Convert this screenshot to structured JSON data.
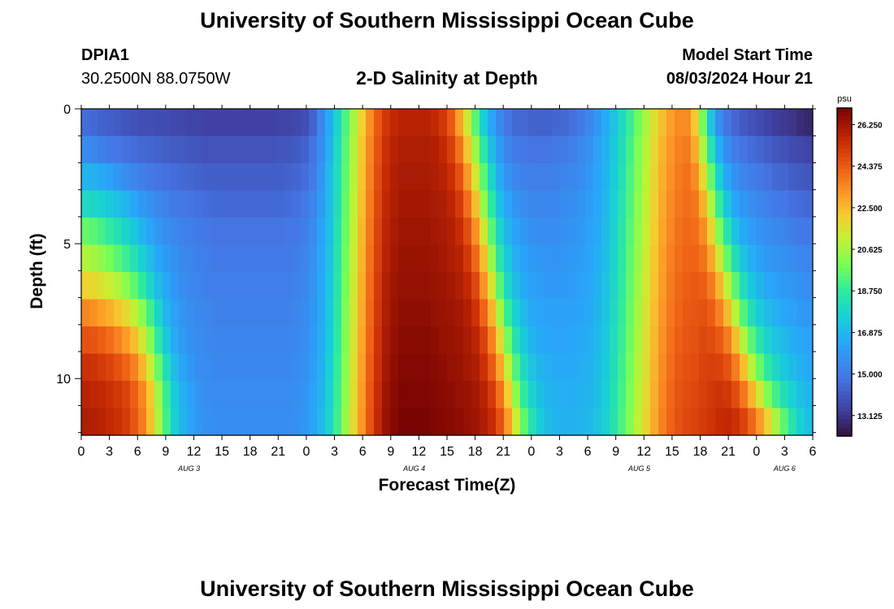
{
  "header": {
    "title": "University of Southern Mississippi Ocean Cube",
    "station_id": "DPIA1",
    "station_coords": "30.2500N  88.0750W",
    "chart_title": "2-D Salinity at Depth",
    "model_start_label": "Model Start Time",
    "model_start_value": "08/03/2024 Hour 21"
  },
  "footer": {
    "title": "University of Southern Mississippi Ocean Cube"
  },
  "chart_data": {
    "type": "heatmap",
    "title": "2-D Salinity at Depth",
    "xlabel": "Forecast Time(Z)",
    "ylabel": "Depth (ft)",
    "x_hours_range": [
      0,
      78
    ],
    "x_tick_labels": [
      "0",
      "3",
      "6",
      "9",
      "12",
      "15",
      "18",
      "21",
      "0",
      "3",
      "6",
      "9",
      "12",
      "15",
      "18",
      "21",
      "0",
      "3",
      "6",
      "9",
      "12",
      "15",
      "18",
      "21",
      "0",
      "3",
      "6"
    ],
    "day_labels": [
      {
        "label": "AUG 3",
        "hour": 11.5
      },
      {
        "label": "AUG 4",
        "hour": 35.5
      },
      {
        "label": "AUG 5",
        "hour": 59.5
      },
      {
        "label": "AUG 6",
        "hour": 75
      }
    ],
    "ylim": [
      0,
      12.1
    ],
    "y_ticks": [
      0,
      5,
      10
    ],
    "depth_levels": 12,
    "colorbar": {
      "unit": "psu",
      "min": 12.2,
      "max": 27.0,
      "tick_labels": [
        "26.250",
        "24.375",
        "22.500",
        "20.625",
        "18.750",
        "16.875",
        "15.000",
        "13.125"
      ],
      "tick_values": [
        26.25,
        24.375,
        22.5,
        20.625,
        18.75,
        16.875,
        15.0,
        13.125
      ]
    },
    "salinity_columns_psu": [
      [
        14.6,
        15.5,
        16.8,
        18.0,
        19.6,
        20.8,
        22.0,
        23.5,
        24.6,
        25.4,
        25.8,
        26.0
      ],
      [
        14.5,
        15.4,
        16.7,
        17.9,
        19.4,
        20.6,
        21.8,
        23.3,
        24.5,
        25.3,
        25.7,
        25.9
      ],
      [
        14.3,
        15.2,
        16.5,
        17.7,
        19.1,
        20.3,
        21.5,
        23.0,
        24.3,
        25.1,
        25.6,
        25.8
      ],
      [
        14.2,
        15.0,
        16.2,
        17.4,
        18.7,
        19.9,
        21.2,
        22.7,
        24.0,
        24.9,
        25.4,
        25.6
      ],
      [
        14.1,
        14.9,
        15.9,
        17.1,
        18.3,
        19.4,
        20.8,
        22.3,
        23.6,
        24.6,
        25.2,
        25.4
      ],
      [
        14.0,
        14.7,
        15.6,
        16.8,
        17.8,
        18.9,
        20.2,
        21.8,
        23.1,
        24.2,
        24.9,
        25.1
      ],
      [
        13.9,
        14.6,
        15.3,
        16.4,
        17.3,
        18.3,
        19.5,
        21.1,
        22.4,
        23.6,
        24.3,
        24.5
      ],
      [
        13.8,
        14.5,
        15.1,
        16.0,
        16.8,
        17.6,
        18.7,
        20.2,
        21.4,
        22.6,
        23.5,
        23.7
      ],
      [
        13.8,
        14.4,
        14.9,
        15.7,
        16.3,
        17.0,
        17.8,
        19.0,
        20.1,
        21.2,
        22.2,
        22.4
      ],
      [
        13.7,
        14.3,
        14.8,
        15.4,
        15.9,
        16.4,
        17.0,
        17.8,
        18.6,
        19.6,
        20.5,
        20.7
      ],
      [
        13.7,
        14.2,
        14.7,
        15.2,
        15.6,
        16.0,
        16.4,
        16.8,
        17.4,
        18.1,
        18.8,
        19.0
      ],
      [
        13.6,
        14.1,
        14.6,
        15.0,
        15.4,
        15.7,
        15.9,
        16.2,
        16.5,
        17.0,
        17.5,
        17.6
      ],
      [
        13.6,
        14.1,
        14.5,
        14.9,
        15.2,
        15.4,
        15.6,
        15.8,
        16.0,
        16.3,
        16.7,
        16.8
      ],
      [
        13.5,
        14.0,
        14.4,
        14.8,
        15.1,
        15.3,
        15.4,
        15.6,
        15.7,
        15.9,
        16.2,
        16.3
      ],
      [
        13.5,
        14.0,
        14.3,
        14.7,
        15.0,
        15.2,
        15.3,
        15.4,
        15.5,
        15.6,
        15.8,
        15.9
      ],
      [
        13.4,
        13.9,
        14.2,
        14.6,
        14.9,
        15.1,
        15.2,
        15.3,
        15.4,
        15.5,
        15.6,
        15.7
      ],
      [
        13.4,
        13.9,
        14.2,
        14.5,
        14.8,
        15.0,
        15.1,
        15.2,
        15.3,
        15.4,
        15.5,
        15.6
      ],
      [
        13.4,
        13.9,
        14.2,
        14.5,
        14.8,
        15.0,
        15.1,
        15.2,
        15.3,
        15.4,
        15.5,
        15.6
      ],
      [
        13.4,
        13.9,
        14.2,
        14.5,
        14.8,
        15.0,
        15.1,
        15.2,
        15.3,
        15.4,
        15.5,
        15.6
      ],
      [
        13.4,
        13.9,
        14.2,
        14.5,
        14.8,
        15.0,
        15.1,
        15.2,
        15.3,
        15.4,
        15.5,
        15.6
      ],
      [
        13.4,
        13.9,
        14.2,
        14.5,
        14.8,
        15.0,
        15.1,
        15.2,
        15.3,
        15.4,
        15.5,
        15.6
      ],
      [
        13.4,
        13.9,
        14.2,
        14.5,
        14.8,
        15.0,
        15.1,
        15.2,
        15.3,
        15.4,
        15.5,
        15.6
      ],
      [
        13.4,
        13.9,
        14.2,
        14.5,
        14.8,
        15.0,
        15.1,
        15.2,
        15.3,
        15.4,
        15.5,
        15.6
      ],
      [
        13.4,
        13.9,
        14.2,
        14.5,
        14.8,
        15.0,
        15.1,
        15.2,
        15.3,
        15.4,
        15.5,
        15.6
      ],
      [
        13.5,
        14.0,
        14.2,
        14.5,
        14.8,
        15.0,
        15.1,
        15.2,
        15.3,
        15.4,
        15.5,
        15.6
      ],
      [
        13.5,
        14.0,
        14.3,
        14.6,
        14.9,
        15.0,
        15.1,
        15.2,
        15.3,
        15.4,
        15.5,
        15.6
      ],
      [
        13.6,
        14.1,
        14.4,
        14.7,
        14.9,
        15.1,
        15.2,
        15.3,
        15.4,
        15.5,
        15.6,
        15.7
      ],
      [
        13.8,
        14.3,
        14.6,
        14.9,
        15.1,
        15.3,
        15.4,
        15.5,
        15.6,
        15.7,
        15.8,
        15.9
      ],
      [
        14.3,
        14.8,
        15.0,
        15.3,
        15.5,
        15.7,
        15.8,
        15.9,
        16.0,
        16.1,
        16.2,
        16.3
      ],
      [
        15.3,
        15.6,
        15.8,
        16.0,
        16.2,
        16.3,
        16.4,
        16.5,
        16.6,
        16.7,
        16.8,
        16.9
      ],
      [
        16.5,
        16.7,
        16.9,
        17.0,
        17.1,
        17.2,
        17.3,
        17.4,
        17.5,
        17.6,
        17.7,
        17.8
      ],
      [
        17.8,
        18.0,
        18.1,
        18.2,
        18.3,
        18.4,
        18.5,
        18.6,
        18.7,
        18.8,
        18.9,
        19.0
      ],
      [
        19.2,
        19.4,
        19.5,
        19.6,
        19.7,
        19.8,
        19.9,
        20.0,
        20.1,
        20.2,
        20.3,
        20.4
      ],
      [
        20.6,
        20.8,
        20.9,
        21.0,
        21.1,
        21.2,
        21.3,
        21.4,
        21.5,
        21.6,
        21.7,
        21.8
      ],
      [
        22.0,
        22.2,
        22.3,
        22.4,
        22.5,
        22.6,
        22.7,
        22.8,
        22.9,
        23.0,
        23.1,
        23.2
      ],
      [
        23.3,
        23.5,
        23.6,
        23.7,
        23.8,
        23.9,
        24.0,
        24.1,
        24.2,
        24.3,
        24.4,
        24.5
      ],
      [
        24.4,
        24.6,
        24.7,
        24.8,
        24.9,
        25.0,
        25.1,
        25.2,
        25.3,
        25.4,
        25.5,
        25.6
      ],
      [
        25.2,
        25.4,
        25.5,
        25.6,
        25.7,
        25.8,
        25.9,
        26.0,
        26.1,
        26.2,
        26.3,
        26.4
      ],
      [
        25.6,
        25.8,
        25.9,
        26.0,
        26.1,
        26.2,
        26.3,
        26.4,
        26.5,
        26.6,
        26.7,
        26.8
      ],
      [
        25.8,
        26.0,
        26.1,
        26.2,
        26.3,
        26.4,
        26.5,
        26.6,
        26.7,
        26.8,
        26.9,
        27.0
      ],
      [
        25.8,
        26.0,
        26.1,
        26.2,
        26.3,
        26.4,
        26.5,
        26.6,
        26.7,
        26.8,
        26.9,
        27.0
      ],
      [
        25.8,
        26.0,
        26.1,
        26.2,
        26.3,
        26.4,
        26.5,
        26.6,
        26.7,
        26.8,
        26.9,
        27.0
      ],
      [
        25.8,
        26.0,
        26.1,
        26.2,
        26.3,
        26.4,
        26.5,
        26.6,
        26.7,
        26.8,
        26.9,
        27.0
      ],
      [
        25.6,
        25.9,
        26.0,
        26.1,
        26.2,
        26.3,
        26.4,
        26.5,
        26.6,
        26.7,
        26.8,
        26.9
      ],
      [
        25.2,
        25.6,
        25.8,
        26.0,
        26.1,
        26.2,
        26.3,
        26.4,
        26.5,
        26.6,
        26.7,
        26.8
      ],
      [
        24.4,
        25.0,
        25.4,
        25.7,
        25.9,
        26.0,
        26.2,
        26.3,
        26.4,
        26.5,
        26.6,
        26.7
      ],
      [
        23.0,
        23.9,
        24.6,
        25.1,
        25.5,
        25.8,
        26.0,
        26.2,
        26.3,
        26.4,
        26.5,
        26.6
      ],
      [
        21.3,
        22.3,
        23.2,
        24.0,
        24.7,
        25.2,
        25.6,
        25.9,
        26.1,
        26.2,
        26.4,
        26.5
      ],
      [
        19.4,
        20.5,
        21.4,
        22.4,
        23.3,
        24.1,
        24.8,
        25.3,
        25.7,
        26.0,
        26.2,
        26.3
      ],
      [
        17.6,
        18.6,
        19.5,
        20.4,
        21.4,
        22.4,
        23.3,
        24.2,
        24.9,
        25.4,
        25.8,
        26.0
      ],
      [
        16.3,
        17.1,
        17.8,
        18.6,
        19.4,
        20.4,
        21.4,
        22.6,
        23.6,
        24.4,
        25.1,
        25.5
      ],
      [
        15.4,
        16.0,
        16.5,
        17.1,
        17.8,
        18.5,
        19.4,
        20.6,
        21.8,
        22.9,
        23.9,
        24.6
      ],
      [
        14.8,
        15.3,
        15.8,
        16.3,
        16.8,
        17.3,
        17.9,
        18.8,
        19.8,
        21.0,
        22.1,
        23.1
      ],
      [
        14.5,
        15.0,
        15.4,
        15.8,
        16.2,
        16.6,
        17.0,
        17.6,
        18.3,
        19.2,
        20.2,
        21.2
      ],
      [
        14.4,
        14.9,
        15.2,
        15.6,
        15.9,
        16.2,
        16.5,
        16.9,
        17.4,
        18.0,
        18.7,
        19.5
      ],
      [
        14.3,
        14.8,
        15.1,
        15.4,
        15.7,
        16.0,
        16.2,
        16.5,
        16.8,
        17.2,
        17.7,
        18.3
      ],
      [
        14.3,
        14.8,
        15.1,
        15.4,
        15.6,
        15.9,
        16.1,
        16.3,
        16.5,
        16.8,
        17.1,
        17.5
      ],
      [
        14.3,
        14.8,
        15.1,
        15.4,
        15.6,
        15.8,
        16.0,
        16.2,
        16.4,
        16.6,
        16.8,
        17.0
      ],
      [
        14.4,
        14.9,
        15.2,
        15.4,
        15.6,
        15.8,
        16.0,
        16.2,
        16.3,
        16.5,
        16.7,
        16.8
      ],
      [
        14.5,
        15.0,
        15.3,
        15.5,
        15.7,
        15.9,
        16.0,
        16.2,
        16.3,
        16.5,
        16.6,
        16.7
      ],
      [
        14.7,
        15.1,
        15.4,
        15.6,
        15.8,
        16.0,
        16.1,
        16.2,
        16.4,
        16.5,
        16.6,
        16.7
      ],
      [
        15.0,
        15.4,
        15.6,
        15.8,
        16.0,
        16.1,
        16.2,
        16.3,
        16.5,
        16.6,
        16.7,
        16.8
      ],
      [
        15.4,
        15.7,
        15.9,
        16.1,
        16.2,
        16.3,
        16.4,
        16.5,
        16.6,
        16.7,
        16.8,
        16.9
      ],
      [
        15.9,
        16.2,
        16.3,
        16.4,
        16.5,
        16.6,
        16.7,
        16.8,
        16.9,
        17.0,
        17.1,
        17.2
      ],
      [
        16.5,
        16.7,
        16.8,
        16.9,
        17.0,
        17.1,
        17.2,
        17.3,
        17.4,
        17.5,
        17.6,
        17.7
      ],
      [
        17.2,
        17.4,
        17.5,
        17.6,
        17.7,
        17.8,
        17.9,
        18.0,
        18.1,
        18.2,
        18.3,
        18.4
      ],
      [
        18.0,
        18.2,
        18.3,
        18.4,
        18.5,
        18.6,
        18.7,
        18.8,
        18.9,
        19.0,
        19.1,
        19.2
      ],
      [
        18.9,
        19.1,
        19.2,
        19.3,
        19.4,
        19.5,
        19.6,
        19.7,
        19.8,
        19.9,
        20.0,
        20.1
      ],
      [
        19.8,
        20.0,
        20.1,
        20.2,
        20.3,
        20.4,
        20.5,
        20.6,
        20.7,
        20.8,
        20.9,
        21.0
      ],
      [
        20.7,
        20.9,
        21.0,
        21.1,
        21.2,
        21.3,
        21.4,
        21.5,
        21.6,
        21.7,
        21.8,
        21.9
      ],
      [
        21.6,
        21.8,
        21.9,
        22.0,
        22.1,
        22.2,
        22.3,
        22.4,
        22.5,
        22.6,
        22.7,
        22.8
      ],
      [
        22.4,
        22.6,
        22.7,
        22.8,
        22.9,
        23.0,
        23.1,
        23.2,
        23.3,
        23.4,
        23.5,
        23.6
      ],
      [
        23.0,
        23.2,
        23.3,
        23.4,
        23.5,
        23.6,
        23.7,
        23.8,
        23.9,
        24.0,
        24.1,
        24.2
      ],
      [
        23.4,
        23.6,
        23.7,
        23.8,
        23.9,
        24.0,
        24.1,
        24.2,
        24.3,
        24.4,
        24.5,
        24.6
      ],
      [
        23.4,
        23.7,
        23.9,
        24.0,
        24.1,
        24.2,
        24.3,
        24.4,
        24.5,
        24.6,
        24.7,
        24.8
      ],
      [
        22.2,
        22.8,
        23.4,
        23.8,
        24.0,
        24.2,
        24.4,
        24.5,
        24.6,
        24.7,
        24.8,
        24.9
      ],
      [
        19.8,
        20.8,
        21.8,
        22.7,
        23.4,
        23.9,
        24.3,
        24.6,
        24.8,
        24.9,
        25.0,
        25.1
      ],
      [
        17.2,
        18.4,
        19.6,
        20.8,
        21.9,
        22.9,
        23.7,
        24.3,
        24.7,
        25.0,
        25.2,
        25.3
      ],
      [
        15.6,
        16.6,
        17.6,
        18.8,
        20.0,
        21.3,
        22.6,
        23.6,
        24.4,
        24.9,
        25.3,
        25.5
      ],
      [
        14.8,
        15.6,
        16.4,
        17.3,
        18.4,
        19.6,
        21.0,
        22.5,
        23.7,
        24.6,
        25.2,
        25.6
      ],
      [
        14.4,
        15.1,
        15.7,
        16.4,
        17.2,
        18.2,
        19.4,
        20.9,
        22.4,
        23.7,
        24.7,
        25.4
      ],
      [
        14.1,
        14.8,
        15.3,
        15.9,
        16.5,
        17.2,
        18.1,
        19.3,
        20.8,
        22.4,
        23.8,
        24.9
      ],
      [
        13.9,
        14.6,
        15.1,
        15.6,
        16.1,
        16.6,
        17.3,
        18.2,
        19.4,
        20.9,
        22.6,
        24.1
      ],
      [
        13.7,
        14.4,
        14.9,
        15.4,
        15.8,
        16.2,
        16.8,
        17.5,
        18.4,
        19.6,
        21.3,
        23.1
      ],
      [
        13.5,
        14.2,
        14.7,
        15.2,
        15.6,
        16.0,
        16.4,
        17.0,
        17.7,
        18.6,
        20.0,
        21.9
      ],
      [
        13.3,
        14.0,
        14.5,
        15.0,
        15.4,
        15.8,
        16.2,
        16.7,
        17.2,
        17.9,
        19.0,
        20.6
      ],
      [
        13.2,
        13.9,
        14.4,
        14.9,
        15.3,
        15.7,
        16.0,
        16.4,
        16.9,
        17.4,
        18.2,
        19.4
      ],
      [
        13.1,
        13.7,
        14.2,
        14.7,
        15.1,
        15.5,
        15.9,
        16.2,
        16.6,
        17.0,
        17.6,
        18.4
      ],
      [
        12.9,
        13.6,
        14.1,
        14.6,
        15.0,
        15.4,
        15.7,
        16.0,
        16.4,
        16.7,
        17.1,
        17.6
      ],
      [
        12.8,
        13.5,
        14.0,
        14.5,
        14.9,
        15.3,
        15.6,
        15.9,
        16.2,
        16.5,
        16.8,
        17.1
      ]
    ]
  }
}
